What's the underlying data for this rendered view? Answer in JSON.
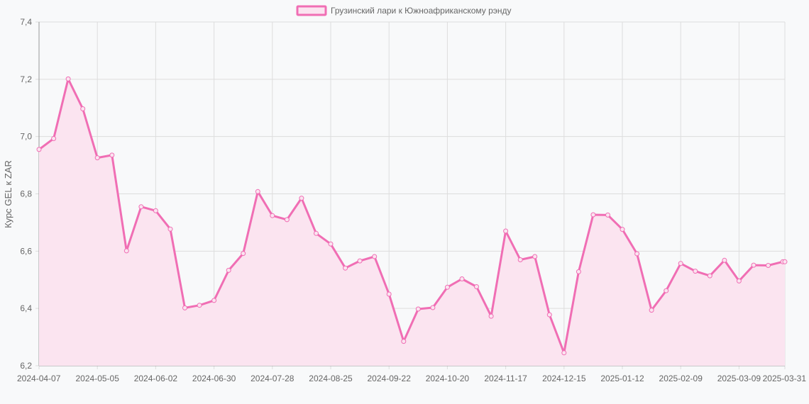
{
  "chart_data": {
    "type": "area",
    "ylabel": "Курс GEL к ZAR",
    "ylim": [
      6.2,
      7.4
    ],
    "y_ticks": [
      "6,2",
      "6,4",
      "6,6",
      "6,8",
      "7,0",
      "7,2",
      "7,4"
    ],
    "x_tick_labels": [
      "2024-04-07",
      "2024-05-05",
      "2024-06-02",
      "2024-06-30",
      "2024-07-28",
      "2024-08-25",
      "2024-09-22",
      "2024-10-20",
      "2024-11-17",
      "2024-12-15",
      "2025-01-12",
      "2025-02-09",
      "2025-03-09",
      "2025-03-31"
    ],
    "grid": true,
    "legend_position": "top-center",
    "colors": {
      "line": "#f06eb4",
      "fill": "#fbe4f0",
      "grid": "#dddddd",
      "axis": "#999999"
    },
    "series": [
      {
        "name": "Грузинский лари к Южноафриканскому рэнду",
        "x": [
          "2024-04-07",
          "2024-04-14",
          "2024-04-21",
          "2024-04-28",
          "2024-05-05",
          "2024-05-12",
          "2024-05-19",
          "2024-05-26",
          "2024-06-02",
          "2024-06-09",
          "2024-06-16",
          "2024-06-23",
          "2024-06-30",
          "2024-07-07",
          "2024-07-14",
          "2024-07-21",
          "2024-07-28",
          "2024-08-04",
          "2024-08-11",
          "2024-08-18",
          "2024-08-25",
          "2024-09-01",
          "2024-09-08",
          "2024-09-15",
          "2024-09-22",
          "2024-09-29",
          "2024-10-06",
          "2024-10-13",
          "2024-10-20",
          "2024-10-27",
          "2024-11-03",
          "2024-11-10",
          "2024-11-17",
          "2024-11-24",
          "2024-12-01",
          "2024-12-08",
          "2024-12-15",
          "2024-12-22",
          "2024-12-29",
          "2025-01-05",
          "2025-01-12",
          "2025-01-19",
          "2025-01-26",
          "2025-02-02",
          "2025-02-09",
          "2025-02-16",
          "2025-02-23",
          "2025-03-02",
          "2025-03-09",
          "2025-03-16",
          "2025-03-23",
          "2025-03-30",
          "2025-03-31"
        ],
        "values": [
          6.955,
          6.993,
          7.201,
          7.097,
          6.926,
          6.935,
          6.601,
          6.755,
          6.741,
          6.677,
          6.402,
          6.411,
          6.428,
          6.533,
          6.592,
          6.808,
          6.724,
          6.71,
          6.785,
          6.662,
          6.625,
          6.541,
          6.566,
          6.581,
          6.45,
          6.285,
          6.398,
          6.403,
          6.474,
          6.503,
          6.476,
          6.373,
          6.67,
          6.57,
          6.581,
          6.378,
          6.245,
          6.528,
          6.727,
          6.726,
          6.676,
          6.591,
          6.394,
          6.462,
          6.557,
          6.53,
          6.514,
          6.568,
          6.496,
          6.551,
          6.55,
          6.563,
          6.563
        ]
      }
    ]
  }
}
